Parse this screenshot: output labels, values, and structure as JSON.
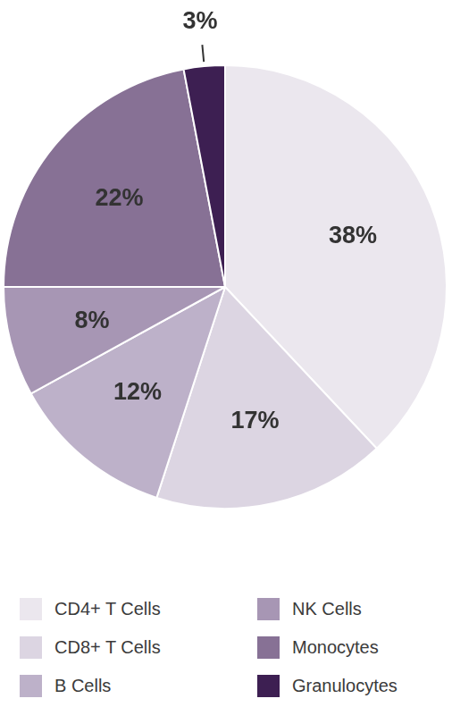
{
  "chart_data": {
    "type": "pie",
    "categories": [
      "CD4+ T Cells",
      "CD8+ T Cells",
      "B Cells",
      "NK Cells",
      "Monocytes",
      "Granulocytes"
    ],
    "values": [
      38,
      17,
      12,
      8,
      22,
      3
    ],
    "value_labels": [
      "38%",
      "17%",
      "12%",
      "8%",
      "22%",
      "3%"
    ],
    "colors": [
      "#ebe7ee",
      "#dcd5e2",
      "#bdb1c9",
      "#a796b4",
      "#877195",
      "#3d1f52"
    ],
    "data_labels": true,
    "legend": "bottom"
  }
}
